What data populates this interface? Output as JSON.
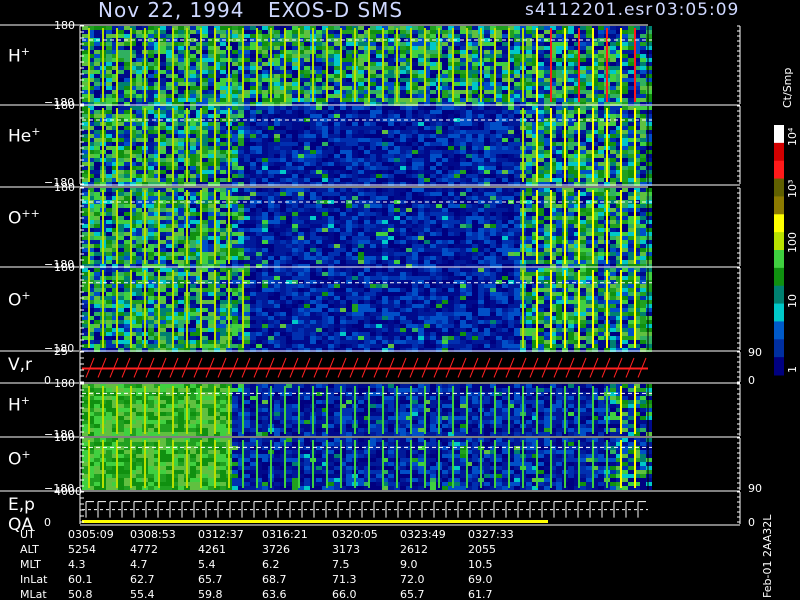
{
  "header": {
    "date": "Nov 22, 1994",
    "instrument": "EXOS-D SMS",
    "file": "s4112201.esr",
    "time": "03:05:09"
  },
  "panels": [
    {
      "label": "H",
      "sup": "+",
      "top": "180",
      "bottom": "−180"
    },
    {
      "label": "He",
      "sup": "+",
      "top": "180",
      "bottom": "−180"
    },
    {
      "label": "O",
      "sup": "++",
      "top": "180",
      "bottom": "−180"
    },
    {
      "label": "O",
      "sup": "+",
      "top": "180",
      "bottom": "−180"
    },
    {
      "label": "V,r",
      "sup": "",
      "top": "25",
      "bottom": "0",
      "right_top": "90",
      "right_bottom": "0"
    },
    {
      "label": "H",
      "sup": "+",
      "top": "180",
      "bottom": "−180"
    },
    {
      "label": "O",
      "sup": "+",
      "top": "180",
      "bottom": "−180",
      "right_bottom": "90"
    },
    {
      "label": "E,p",
      "label2": "QA",
      "sup": "",
      "top": "4000",
      "bottom": "0",
      "right_bottom": "0"
    }
  ],
  "colorbar": {
    "unit": "Ct/Smp",
    "labels": [
      "10⁴",
      "10³",
      "100",
      "10",
      "1"
    ],
    "colors": [
      "#ffffff",
      "#d10000",
      "#ff1a1a",
      "#606000",
      "#8c7a00",
      "#ffff00",
      "#b8e000",
      "#40d040",
      "#109010",
      "#008070",
      "#00c8c8",
      "#005ac8",
      "#002fa0",
      "#000080"
    ]
  },
  "footer": {
    "rows": [
      {
        "label": "UT",
        "values": [
          "0305:09",
          "0308:53",
          "0312:37",
          "0316:21",
          "0320:05",
          "0323:49",
          "0327:33"
        ]
      },
      {
        "label": "ALT",
        "values": [
          "5254",
          "4772",
          "4261",
          "3726",
          "3173",
          "2612",
          "2055"
        ]
      },
      {
        "label": "MLT",
        "values": [
          "4.3",
          "4.7",
          "5.4",
          "6.2",
          "7.5",
          "9.0",
          "10.5"
        ]
      },
      {
        "label": "InLat",
        "values": [
          "60.1",
          "62.7",
          "65.7",
          "68.7",
          "71.3",
          "72.0",
          "69.0"
        ]
      },
      {
        "label": "MLat",
        "values": [
          "50.8",
          "55.4",
          "59.8",
          "63.6",
          "66.0",
          "65.7",
          "61.7"
        ]
      }
    ],
    "side_note": "Feb-01 2AA32L"
  },
  "chart_data": {
    "type": "heatmap",
    "title": "Nov 22, 1994   EXOS-D SMS",
    "series": [
      {
        "name": "H+",
        "ylim": [
          -180,
          180
        ]
      },
      {
        "name": "He+",
        "ylim": [
          -180,
          180
        ]
      },
      {
        "name": "O++",
        "ylim": [
          -180,
          180
        ]
      },
      {
        "name": "O+",
        "ylim": [
          -180,
          180
        ]
      },
      {
        "name": "V,r",
        "ylim": [
          0,
          25
        ]
      },
      {
        "name": "H+",
        "ylim": [
          -180,
          180
        ]
      },
      {
        "name": "O+",
        "ylim": [
          -180,
          180
        ]
      },
      {
        "name": "E,p",
        "ylim": [
          0,
          4000
        ]
      }
    ],
    "x": [
      "0305:09",
      "0308:53",
      "0312:37",
      "0316:21",
      "0320:05",
      "0323:49",
      "0327:33"
    ],
    "colorbar_unit": "Ct/Smp",
    "colorbar_range": [
      1,
      10000
    ]
  }
}
